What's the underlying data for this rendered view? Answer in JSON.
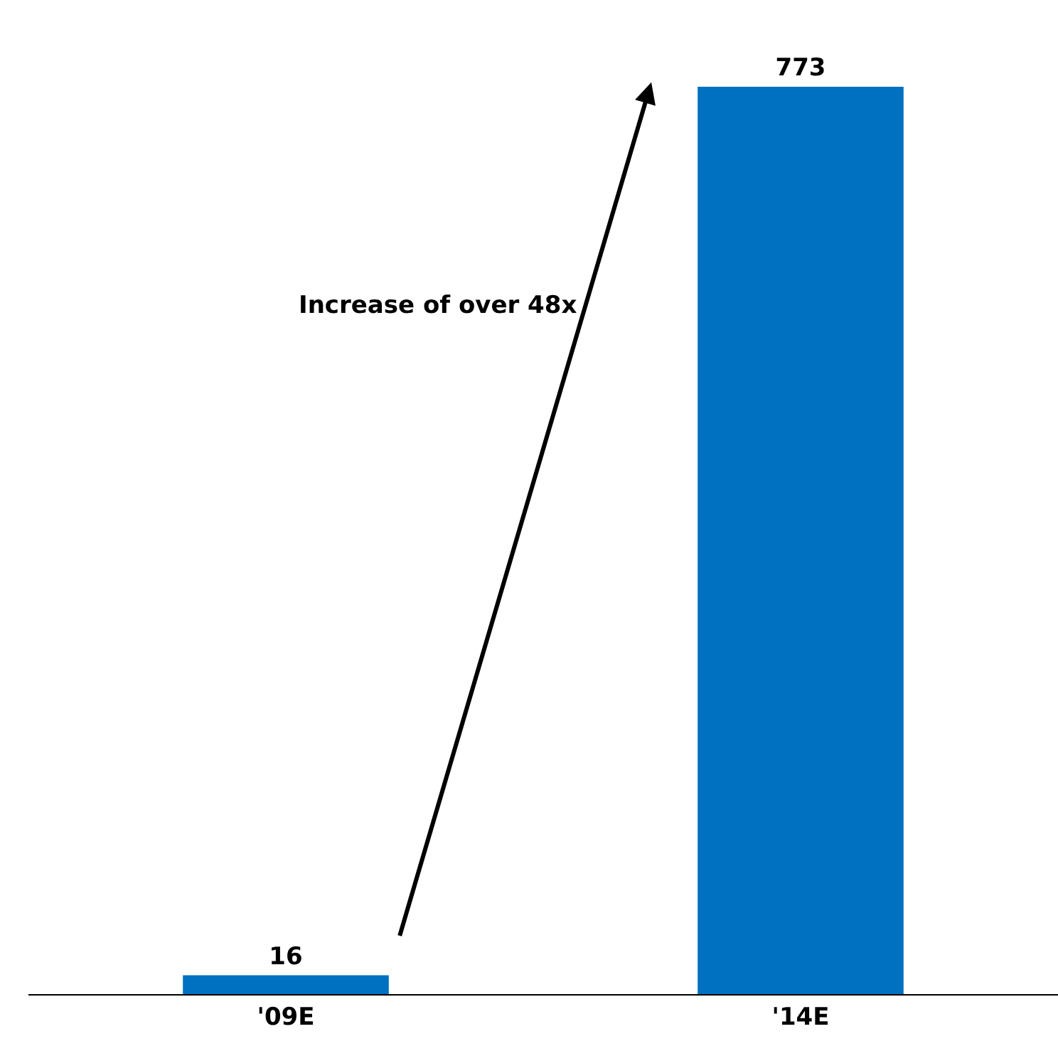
{
  "chart_data": {
    "type": "bar",
    "categories": [
      "'09E",
      "'14E"
    ],
    "values": [
      16,
      773
    ],
    "color": "#0070c0",
    "data_labels": true,
    "tick_labels": "x",
    "annotations": [
      "Increase of over 48x"
    ]
  }
}
